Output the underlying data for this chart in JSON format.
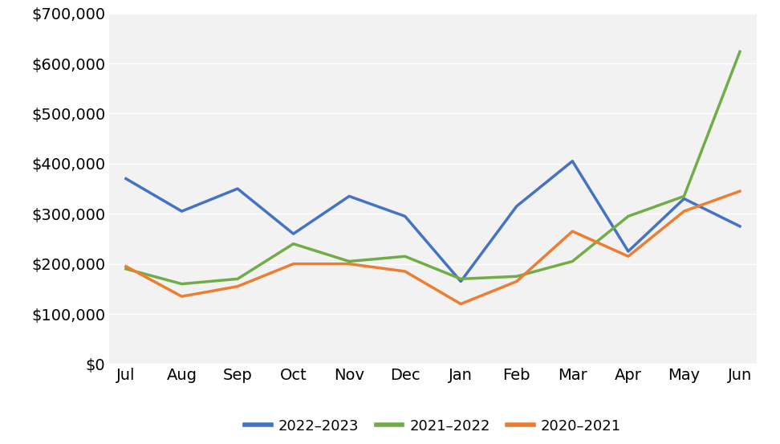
{
  "months": [
    "Jul",
    "Aug",
    "Sep",
    "Oct",
    "Nov",
    "Dec",
    "Jan",
    "Feb",
    "Mar",
    "Apr",
    "May",
    "Jun"
  ],
  "series": {
    "2022–2023": {
      "values": [
        370000,
        305000,
        350000,
        260000,
        335000,
        295000,
        165000,
        315000,
        405000,
        225000,
        330000,
        275000
      ],
      "color": "#4472C4",
      "label": "2022–2023"
    },
    "2021–2022": {
      "values": [
        190000,
        160000,
        170000,
        240000,
        205000,
        215000,
        170000,
        175000,
        205000,
        295000,
        335000,
        623500
      ],
      "color": "#70AD47",
      "label": "2021–2022"
    },
    "2020–2021": {
      "values": [
        195000,
        135000,
        155000,
        200000,
        200000,
        185000,
        120000,
        165000,
        265000,
        215000,
        305000,
        345000
      ],
      "color": "#ED7D31",
      "label": "2020–2021"
    }
  },
  "ylim": [
    0,
    700000
  ],
  "yticks": [
    0,
    100000,
    200000,
    300000,
    400000,
    500000,
    600000,
    700000
  ],
  "background_color": "#ffffff",
  "plot_background_color": "#f2f2f2",
  "grid_color": "#ffffff",
  "legend_order": [
    "2022–2023",
    "2021–2022",
    "2020–2021"
  ],
  "line_width": 2.5,
  "tick_fontsize": 14,
  "legend_fontsize": 13
}
